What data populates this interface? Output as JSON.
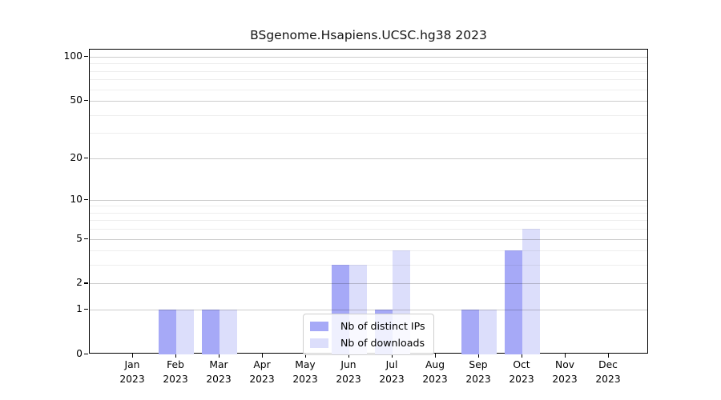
{
  "chart_data": {
    "type": "bar",
    "title": "BSgenome.Hsapiens.UCSC.hg38 2023",
    "categories": [
      "Jan",
      "Feb",
      "Mar",
      "Apr",
      "May",
      "Jun",
      "Jul",
      "Aug",
      "Sep",
      "Oct",
      "Nov",
      "Dec"
    ],
    "x_year": "2023",
    "series": [
      {
        "name": "Nb of distinct IPs",
        "color": "#a6a9f7",
        "values": [
          0,
          1,
          1,
          0,
          0,
          3,
          1,
          0,
          1,
          4,
          0,
          0
        ]
      },
      {
        "name": "Nb of downloads",
        "color": "#dcdefb",
        "values": [
          0,
          1,
          1,
          0,
          0,
          3,
          4,
          0,
          1,
          6,
          0,
          0
        ]
      }
    ],
    "yscale": "log1p",
    "ylim": [
      0,
      112
    ],
    "y_ticks": [
      0,
      1,
      2,
      5,
      10,
      20,
      50,
      100
    ],
    "y_minor_grid": [
      3,
      4,
      6,
      7,
      8,
      9,
      30,
      40,
      60,
      70,
      80,
      90
    ],
    "grid": "horizontal-on",
    "legend_position": "lower-center-inside",
    "bar_group": "paired-side-by-side"
  }
}
